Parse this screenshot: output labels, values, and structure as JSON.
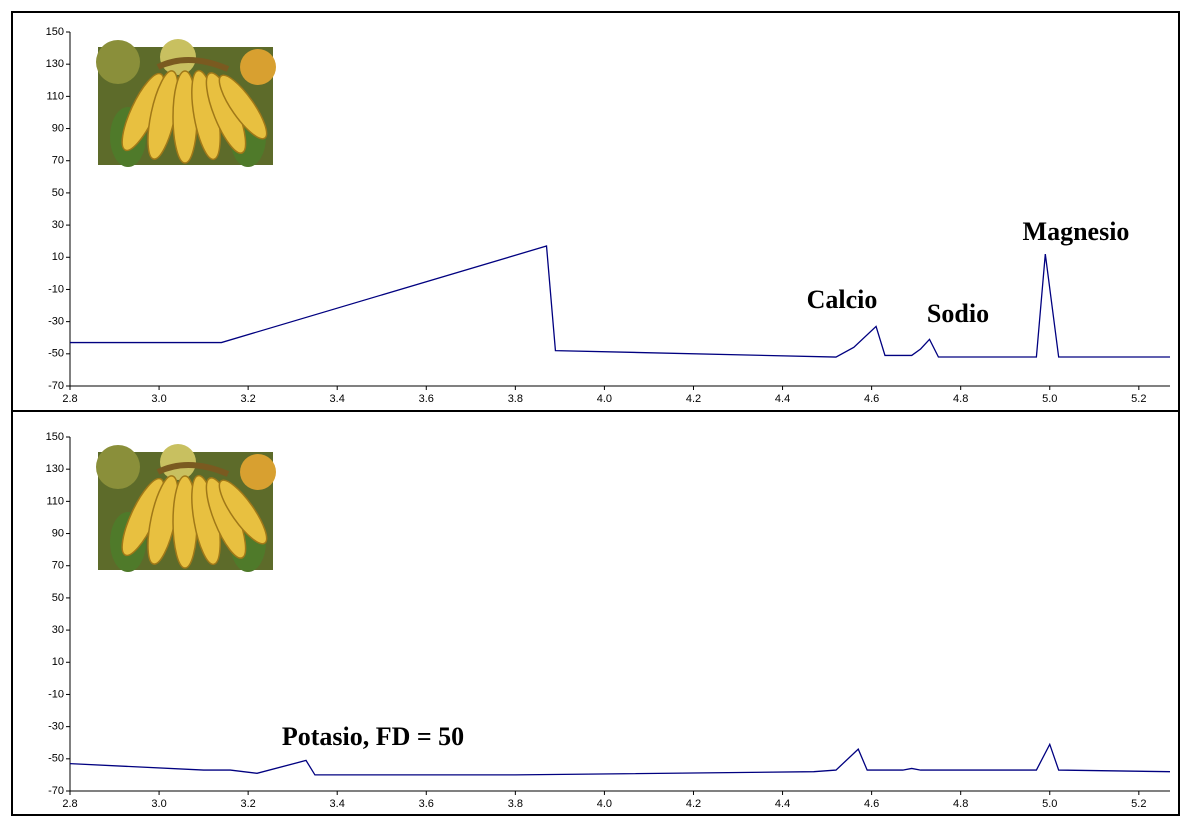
{
  "chart_data": [
    {
      "type": "line",
      "x": [
        2.8,
        3.14,
        3.87,
        3.89,
        4.52,
        4.56,
        4.61,
        4.63,
        4.69,
        4.71,
        4.73,
        4.75,
        4.97,
        4.99,
        5.02,
        5.27
      ],
      "series": [
        {
          "color": "#000080",
          "values": [
            -43,
            -43,
            17,
            -48,
            -52,
            -46,
            -33,
            -51,
            -51,
            -47,
            -41,
            -52,
            -52,
            12,
            -52,
            -52
          ]
        }
      ],
      "xlim": [
        2.8,
        5.27
      ],
      "xticks": [
        2.8,
        {
          "value": 3,
          "label": "3.0"
        },
        3.2,
        3.4,
        3.6,
        3.8,
        {
          "value": 4,
          "label": "4.0"
        },
        4.2,
        4.4,
        4.6,
        4.8,
        {
          "value": 5,
          "label": "5.0"
        },
        5.2
      ],
      "ylim": [
        -70,
        150
      ],
      "yticks": [
        -70,
        -50,
        -30,
        -10,
        10,
        30,
        50,
        70,
        90,
        110,
        130,
        150
      ],
      "annotations": [
        "Calcio",
        "Sodio",
        "Magnesio"
      ]
    },
    {
      "type": "line",
      "x": [
        2.8,
        3.1,
        3.16,
        3.22,
        3.33,
        3.35,
        3.8,
        4.47,
        4.52,
        4.57,
        4.59,
        4.67,
        4.69,
        4.71,
        4.97,
        5.0,
        5.02,
        5.27
      ],
      "series": [
        {
          "color": "#000080",
          "values": [
            -53,
            -57,
            -57,
            -59,
            -51,
            -60,
            -60,
            -58,
            -57,
            -44,
            -57,
            -57,
            -56,
            -57,
            -57,
            -41,
            -57,
            -58
          ]
        }
      ],
      "xlim": [
        2.8,
        5.27
      ],
      "xticks": [
        2.8,
        {
          "value": 3,
          "label": "3.0"
        },
        3.2,
        3.4,
        3.6,
        3.8,
        {
          "value": 4,
          "label": "4.0"
        },
        4.2,
        4.4,
        4.6,
        4.8,
        {
          "value": 5,
          "label": "5.0"
        },
        5.2
      ],
      "ylim": [
        -70,
        150
      ],
      "yticks": [
        -70,
        -50,
        -30,
        -10,
        10,
        30,
        50,
        70,
        90,
        110,
        130,
        150
      ],
      "annotations": [
        "Potasio, FD = 50"
      ]
    }
  ]
}
